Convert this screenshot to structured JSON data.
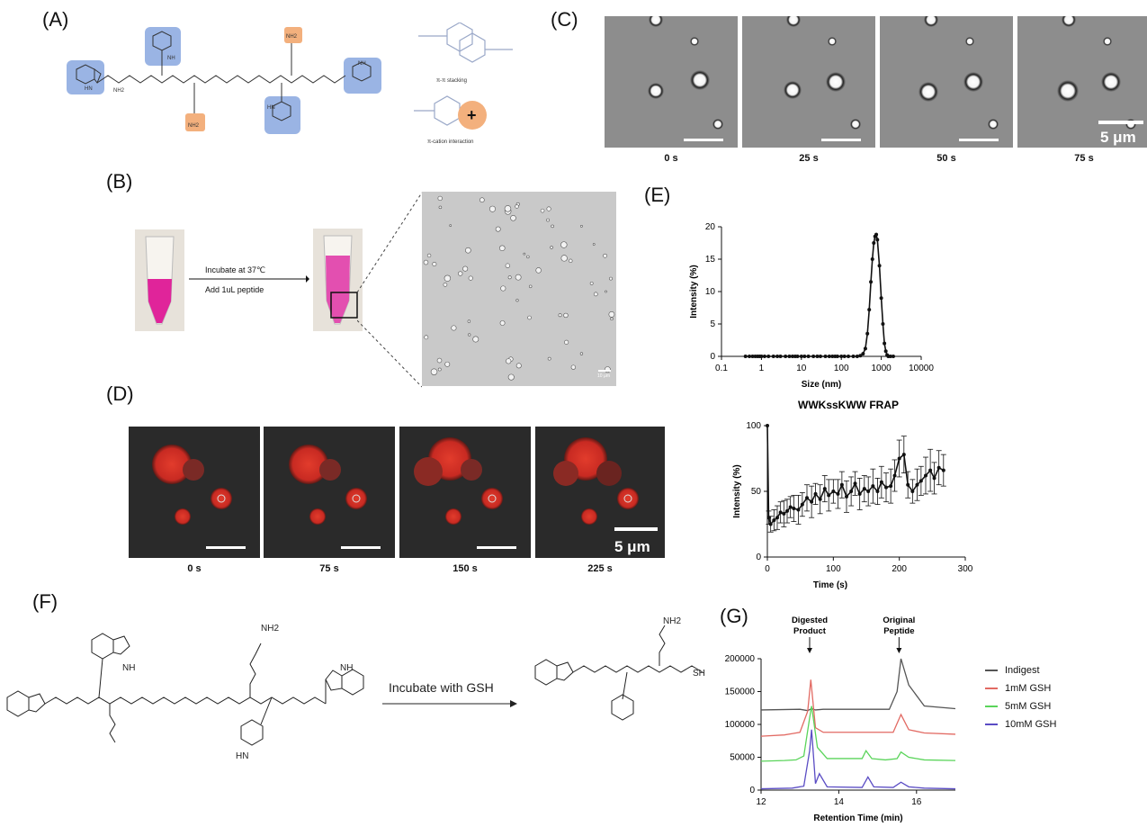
{
  "labels": {
    "A": "(A)",
    "B": "(B)",
    "C": "(C)",
    "D": "(D)",
    "E": "(E)",
    "F": "(F)",
    "G": "(G)"
  },
  "panel_a": {
    "nh2_labels": [
      "NH2",
      "NH2",
      "NH2"
    ],
    "nh_labels": [
      "NH",
      "HN",
      "NH",
      "HN"
    ],
    "pi_pi": "π-π stacking",
    "pi_cation": "π-cation interaction"
  },
  "panel_b": {
    "arrow_top": "Incubate at 37℃",
    "arrow_bottom": "Add 1uL peptide",
    "scale": "10 μm"
  },
  "panel_c": {
    "times": [
      "0 s",
      "25 s",
      "50 s",
      "75 s"
    ],
    "scale": "5 μm"
  },
  "panel_d": {
    "times": [
      "0 s",
      "75 s",
      "150 s",
      "225 s"
    ],
    "scale": "5 μm"
  },
  "panel_f": {
    "arrow_label": "Incubate with GSH",
    "groups": [
      "NH2",
      "NH",
      "HN",
      "NH",
      "SH",
      "NH2"
    ]
  },
  "colors": {
    "blue_hl": "#9ab4e4",
    "orange_hl": "#f3b07d",
    "magenta": "#e0249a",
    "red_cond": "#e23c2c"
  },
  "chart_data": [
    {
      "type": "line",
      "id": "E-top",
      "xlabel": "Size (nm)",
      "ylabel": "Intensity (%)",
      "xscale": "log",
      "xlim": [
        0.1,
        10000
      ],
      "ylim": [
        0,
        20
      ],
      "xticks": [
        "0.1",
        "1",
        "10",
        "100",
        "1000",
        "10000"
      ],
      "yticks": [
        "0",
        "5",
        "10",
        "15",
        "20"
      ],
      "x": [
        0.4,
        0.5,
        0.6,
        0.7,
        0.8,
        0.9,
        1,
        1.2,
        1.5,
        2,
        2.5,
        3,
        4,
        5,
        6,
        7,
        8,
        10,
        12,
        15,
        20,
        25,
        30,
        40,
        50,
        60,
        70,
        80,
        100,
        120,
        150,
        200,
        250,
        300,
        350,
        400,
        450,
        500,
        550,
        600,
        650,
        700,
        750,
        800,
        900,
        1000,
        1100,
        1200,
        1300,
        1400,
        1500,
        1700,
        2000
      ],
      "y": [
        0,
        0,
        0,
        0,
        0,
        0,
        0,
        0,
        0,
        0,
        0,
        0,
        0,
        0,
        0,
        0,
        0,
        0,
        0,
        0,
        0,
        0,
        0,
        0,
        0,
        0,
        0,
        0,
        0,
        0,
        0,
        0,
        0,
        0.1,
        0.4,
        1.2,
        3.5,
        7.2,
        11.5,
        15.0,
        17.5,
        18.5,
        18.8,
        18.0,
        14.0,
        9.0,
        5.0,
        2.0,
        0.8,
        0.2,
        0,
        0,
        0
      ]
    },
    {
      "type": "line",
      "id": "E-bottom",
      "title": "WWKssKWW FRAP",
      "xlabel": "Time (s)",
      "ylabel": "Intensity (%)",
      "xlim": [
        0,
        300
      ],
      "ylim": [
        0,
        100
      ],
      "xticks": [
        "0",
        "100",
        "200",
        "300"
      ],
      "yticks": [
        "0",
        "50",
        "100"
      ],
      "x": [
        0,
        2,
        5,
        10,
        15,
        20,
        25,
        30,
        35,
        40,
        47,
        53,
        60,
        67,
        73,
        80,
        87,
        93,
        100,
        107,
        113,
        120,
        127,
        133,
        140,
        147,
        153,
        160,
        167,
        173,
        180,
        187,
        193,
        200,
        207,
        213,
        220,
        227,
        233,
        240,
        247,
        253,
        260,
        267
      ],
      "y": [
        100,
        30,
        25,
        28,
        30,
        34,
        33,
        35,
        38,
        37,
        36,
        40,
        45,
        42,
        48,
        44,
        52,
        47,
        50,
        48,
        55,
        46,
        50,
        56,
        48,
        52,
        50,
        54,
        50,
        57,
        53,
        54,
        62,
        75,
        78,
        55,
        50,
        55,
        58,
        62,
        66,
        60,
        68,
        66
      ],
      "err": [
        0,
        5,
        6,
        8,
        9,
        8,
        10,
        9,
        8,
        10,
        11,
        9,
        10,
        12,
        8,
        11,
        10,
        12,
        9,
        11,
        10,
        12,
        11,
        9,
        12,
        10,
        11,
        13,
        10,
        12,
        11,
        13,
        12,
        14,
        14,
        10,
        9,
        12,
        11,
        14,
        16,
        12,
        13,
        12
      ]
    },
    {
      "type": "line",
      "id": "G",
      "xlabel": "Retention Time (min)",
      "ylabel": "",
      "xlim": [
        12,
        17
      ],
      "ylim": [
        0,
        200000
      ],
      "xticks": [
        "12",
        "14",
        "16"
      ],
      "yticks": [
        "0",
        "50000",
        "100000",
        "150000",
        "200000"
      ],
      "annotations": [
        {
          "text": "Digested\nProduct",
          "x": 13.25
        },
        {
          "text": "Original\nPeptide",
          "x": 15.55
        }
      ],
      "series": [
        {
          "name": "Indigest",
          "color": "#555555",
          "x": [
            12,
            13.0,
            13.2,
            13.3,
            13.4,
            13.6,
            15.3,
            15.5,
            15.6,
            15.8,
            16.2,
            17
          ],
          "y": [
            122000,
            123000,
            121000,
            124000,
            122000,
            123000,
            123000,
            150000,
            200000,
            160000,
            128000,
            124000
          ]
        },
        {
          "name": "1mM GSH",
          "color": "#e26a63",
          "x": [
            12,
            12.6,
            12.8,
            13.0,
            13.2,
            13.28,
            13.4,
            13.6,
            15.4,
            15.6,
            15.8,
            16.2,
            17
          ],
          "y": [
            82000,
            84000,
            86000,
            88000,
            120000,
            168000,
            95000,
            88000,
            88000,
            115000,
            92000,
            87000,
            85000
          ]
        },
        {
          "name": "5mM GSH",
          "color": "#5ad45a",
          "x": [
            12,
            12.6,
            12.9,
            13.1,
            13.25,
            13.3,
            13.45,
            13.7,
            14.6,
            14.7,
            14.85,
            15.2,
            15.5,
            15.6,
            15.8,
            16.2,
            17
          ],
          "y": [
            44000,
            45000,
            46000,
            52000,
            110000,
            128000,
            65000,
            48000,
            48000,
            60000,
            48000,
            46000,
            48000,
            58000,
            50000,
            46000,
            45000
          ]
        },
        {
          "name": "10mM GSH",
          "color": "#5a4cc4",
          "x": [
            12,
            12.8,
            13.1,
            13.25,
            13.3,
            13.4,
            13.5,
            13.7,
            14.6,
            14.75,
            14.9,
            15.4,
            15.6,
            15.8,
            16.2,
            17
          ],
          "y": [
            2000,
            3000,
            6000,
            60000,
            92000,
            10000,
            25000,
            5000,
            4000,
            20000,
            5000,
            4000,
            12000,
            5000,
            3000,
            2000
          ]
        }
      ]
    }
  ]
}
